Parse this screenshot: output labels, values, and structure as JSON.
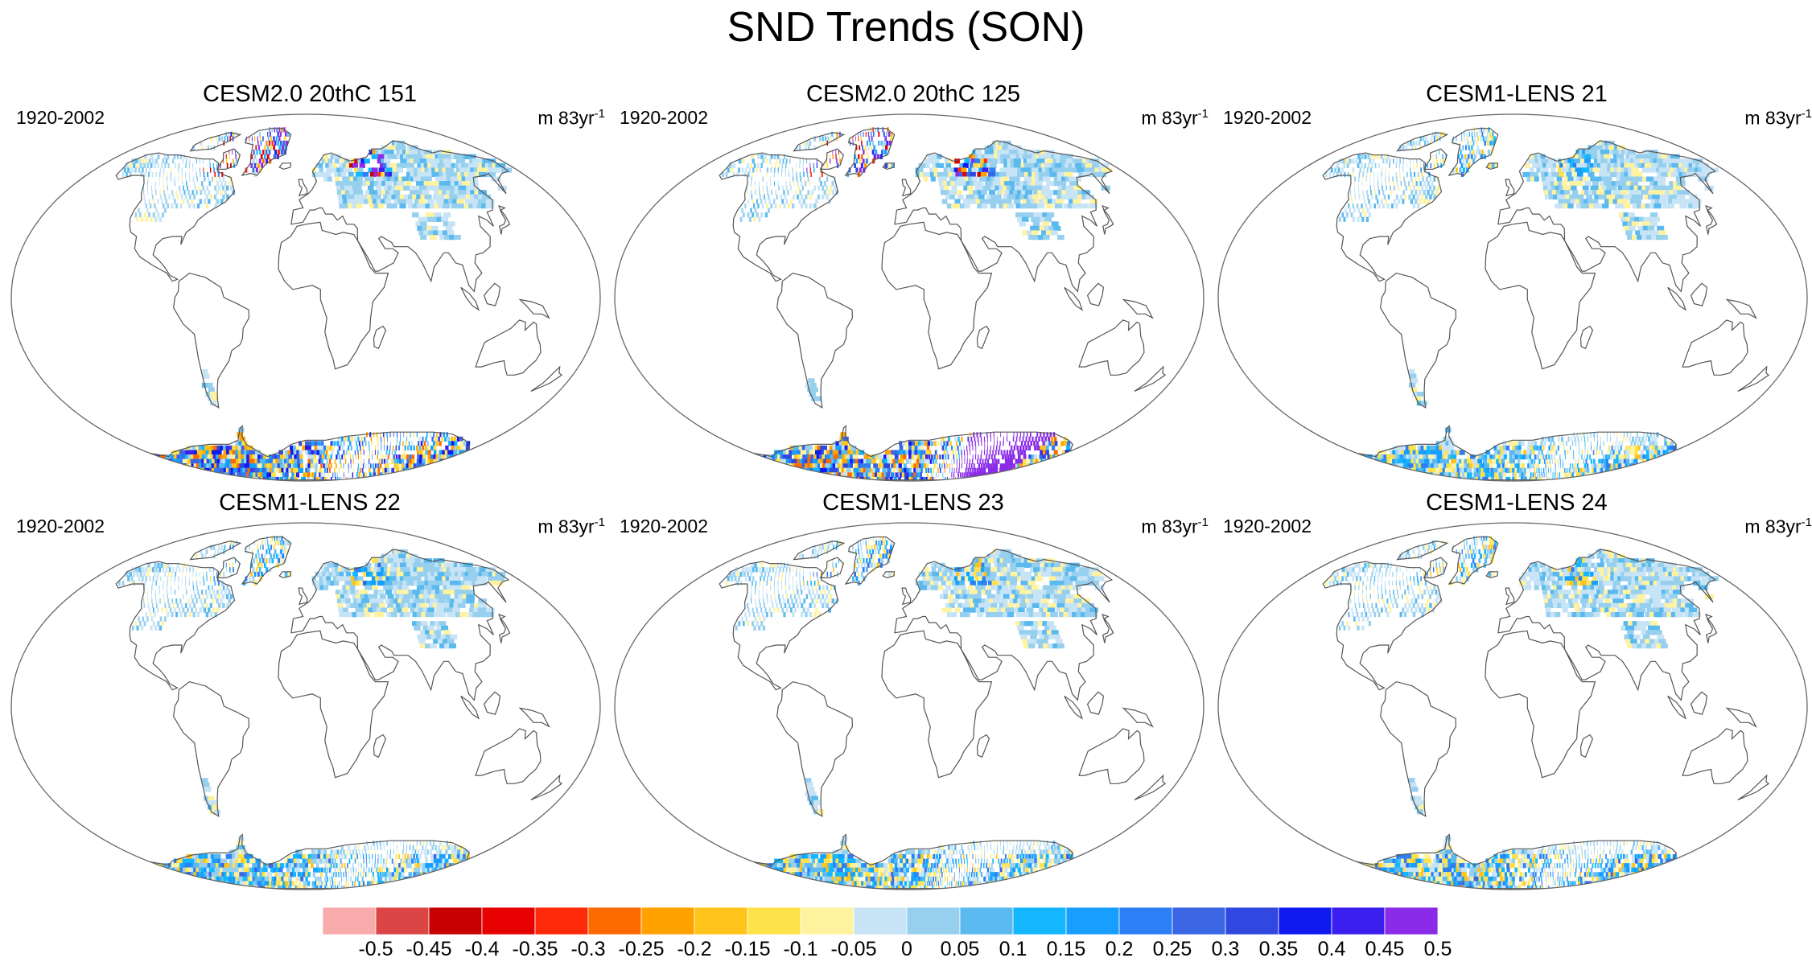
{
  "title": "SND Trends (SON)",
  "panels": [
    {
      "title": "CESM2.0 20thC 151",
      "period": "1920-2002",
      "units_base": "m 83yr",
      "units_exp": "-1",
      "intensity": 1.0,
      "seed": 3
    },
    {
      "title": "CESM2.0 20thC 125",
      "period": "1920-2002",
      "units_base": "m 83yr",
      "units_exp": "-1",
      "intensity": 1.0,
      "seed": 7
    },
    {
      "title": "CESM1-LENS 21",
      "period": "1920-2002",
      "units_base": "m 83yr",
      "units_exp": "-1",
      "intensity": 0.35,
      "seed": 11
    },
    {
      "title": "CESM1-LENS 22",
      "period": "1920-2002",
      "units_base": "m 83yr",
      "units_exp": "-1",
      "intensity": 0.4,
      "seed": 13
    },
    {
      "title": "CESM1-LENS 23",
      "period": "1920-2002",
      "units_base": "m 83yr",
      "units_exp": "-1",
      "intensity": 0.4,
      "seed": 17
    },
    {
      "title": "CESM1-LENS 24",
      "period": "1920-2002",
      "units_base": "m 83yr",
      "units_exp": "-1",
      "intensity": 0.4,
      "seed": 19
    }
  ],
  "colorbar": {
    "labels": [
      "-0.5",
      "-0.45",
      "-0.4",
      "-0.35",
      "-0.3",
      "-0.25",
      "-0.2",
      "-0.15",
      "-0.1",
      "-0.05",
      "0",
      "0.05",
      "0.1",
      "0.15",
      "0.2",
      "0.25",
      "0.3",
      "0.35",
      "0.4",
      "0.45",
      "0.5"
    ],
    "colors": [
      "#f9aaaa",
      "#dc4545",
      "#c80000",
      "#e60000",
      "#ff2a0a",
      "#ff6a00",
      "#ffa200",
      "#ffc41a",
      "#ffe14a",
      "#fff3a0",
      "#c7e4f6",
      "#97d0ee",
      "#5ab9ef",
      "#14b7ff",
      "#179eff",
      "#2d7ff5",
      "#3a66e3",
      "#3047e0",
      "#0f1af0",
      "#3a1fee",
      "#8a2be8"
    ]
  }
}
